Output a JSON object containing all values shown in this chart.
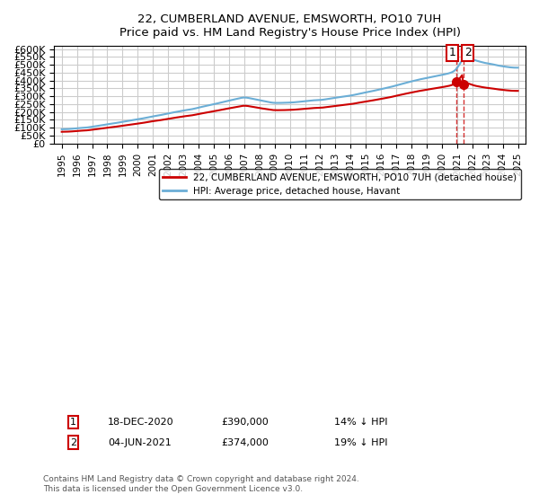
{
  "title": "22, CUMBERLAND AVENUE, EMSWORTH, PO10 7UH",
  "subtitle": "Price paid vs. HM Land Registry's House Price Index (HPI)",
  "legend_line1": "22, CUMBERLAND AVENUE, EMSWORTH, PO10 7UH (detached house)",
  "legend_line2": "HPI: Average price, detached house, Havant",
  "annotation1_label": "1",
  "annotation1_date": "18-DEC-2020",
  "annotation1_price": "£390,000",
  "annotation1_hpi": "14% ↓ HPI",
  "annotation2_label": "2",
  "annotation2_date": "04-JUN-2021",
  "annotation2_price": "£374,000",
  "annotation2_hpi": "19% ↓ HPI",
  "footer": "Contains HM Land Registry data © Crown copyright and database right 2024.\nThis data is licensed under the Open Government Licence v3.0.",
  "hpi_color": "#6baed6",
  "sale_color": "#cc0000",
  "dashed_color": "#cc0000",
  "box_color": "#cc0000",
  "ylim_min": 0,
  "ylim_max": 620000,
  "ytick_step": 50000,
  "background_color": "#ffffff",
  "grid_color": "#cccccc"
}
